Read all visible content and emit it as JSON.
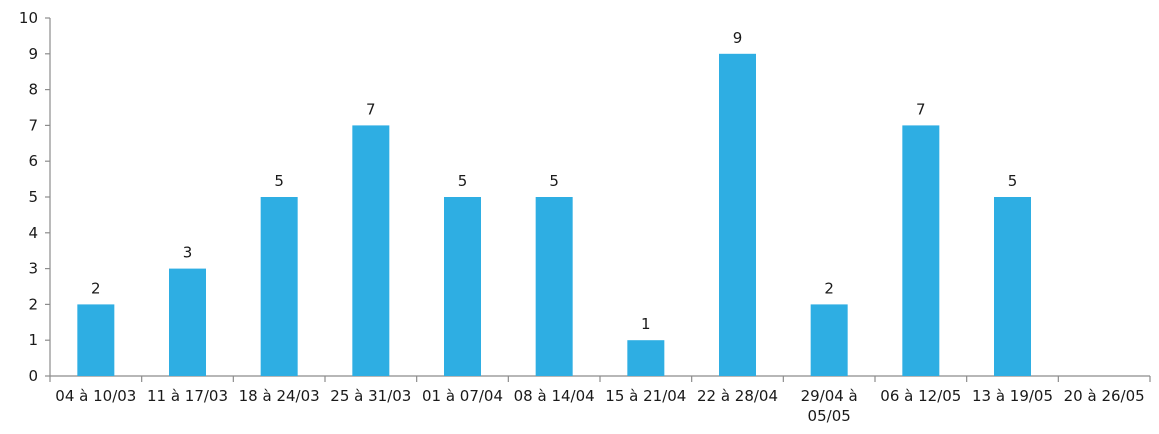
{
  "chart_data": {
    "type": "bar",
    "categories": [
      "04 à 10/03",
      "11 à 17/03",
      "18 à 24/03",
      "25 à 31/03",
      "01 à 07/04",
      "08 à 14/04",
      "15 à 21/04",
      "22 à 28/04",
      "29/04 à 05/05",
      "06 à 12/05",
      "13 à 19/05",
      "20 à 26/05"
    ],
    "values": [
      2,
      3,
      5,
      7,
      5,
      5,
      1,
      9,
      2,
      7,
      5,
      null
    ],
    "data_labels": [
      "2",
      "3",
      "5",
      "7",
      "5",
      "5",
      "1",
      "9",
      "2",
      "7",
      "5",
      ""
    ],
    "y_ticks": [
      "0",
      "1",
      "2",
      "3",
      "4",
      "5",
      "6",
      "7",
      "8",
      "9",
      "10"
    ],
    "ylim": [
      0,
      10
    ],
    "title": "",
    "xlabel": "",
    "ylabel": "",
    "grid": false,
    "legend": "none",
    "bar_color": "#2eaee3",
    "axis_color": "#8c8c8c"
  }
}
